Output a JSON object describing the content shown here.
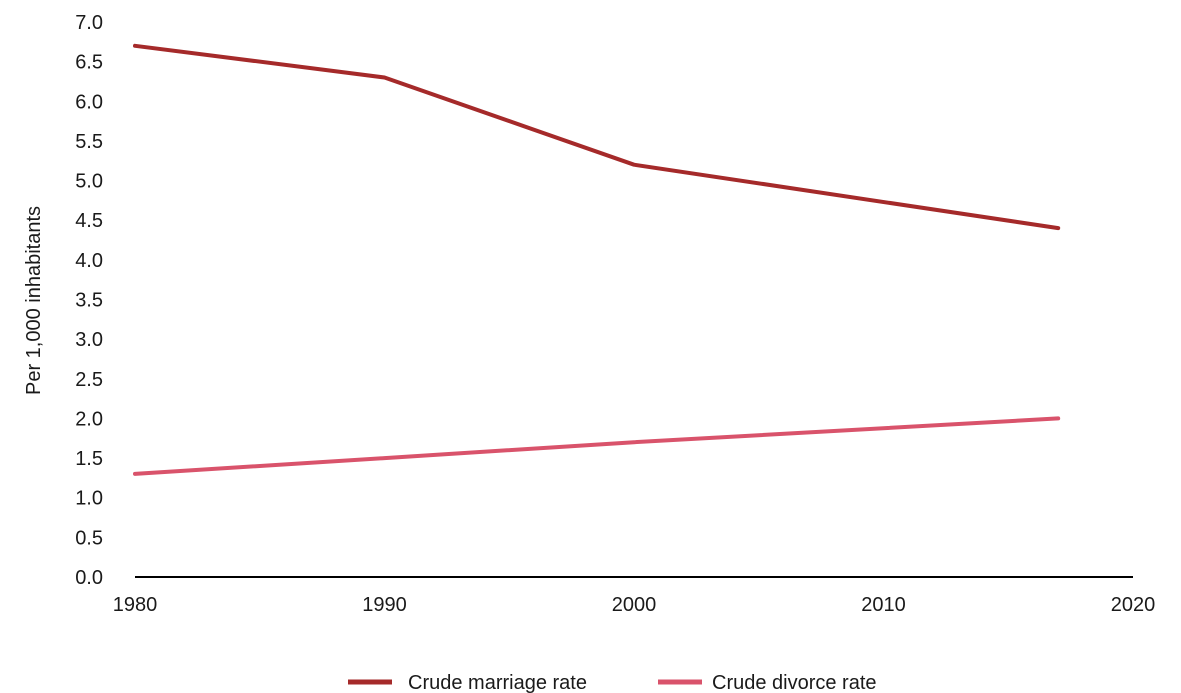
{
  "chart_data": {
    "type": "line",
    "title": "",
    "xlabel": "",
    "ylabel": "Per 1,000 inhabitants",
    "xlim": [
      1980,
      2020
    ],
    "ylim": [
      0,
      7
    ],
    "x_ticks": [
      "1980",
      "1990",
      "2000",
      "2010",
      "2020"
    ],
    "y_ticks": [
      "0.0",
      "0.5",
      "1.0",
      "1.5",
      "2.0",
      "2.5",
      "3.0",
      "3.5",
      "4.0",
      "4.5",
      "5.0",
      "5.5",
      "6.0",
      "6.5",
      "7.0"
    ],
    "grid": false,
    "legend_position": "bottom",
    "series": [
      {
        "name": "Crude marriage rate",
        "color": "#a52a2a",
        "x": [
          1980,
          1990,
          2000,
          2017
        ],
        "values": [
          6.7,
          6.3,
          5.2,
          4.4
        ]
      },
      {
        "name": "Crude divorce rate",
        "color": "#d9536b",
        "x": [
          1980,
          1990,
          2000,
          2017
        ],
        "values": [
          1.3,
          1.5,
          1.7,
          2.0
        ]
      }
    ]
  }
}
